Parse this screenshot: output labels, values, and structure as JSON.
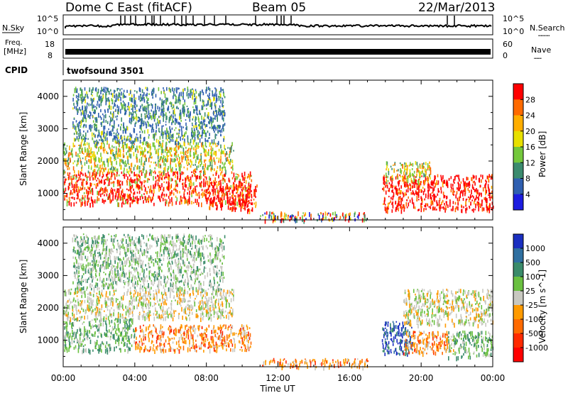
{
  "header": {
    "station": "Dome C East (fitACF)",
    "beam": "Beam 05",
    "date": "22/Mar/2013"
  },
  "noise_panel": {
    "left_label": "N.Sky",
    "right_label": "N.Search",
    "right_dots": "………",
    "left_ticks": [
      "10^5",
      "10^0"
    ],
    "right_ticks": [
      "10^5",
      "10^0"
    ]
  },
  "freq_panel": {
    "left_label_line1": "Freq.",
    "left_label_line2": "[MHz]",
    "right_label": "Nave",
    "right_dots": "……",
    "left_ticks": [
      "18",
      "8"
    ],
    "right_ticks": [
      "60",
      "0"
    ]
  },
  "cpid": {
    "label": "CPID",
    "program": "twofsound 3501"
  },
  "x_axis": {
    "title": "Time UT",
    "ticks": [
      "00:00",
      "04:00",
      "08:00",
      "12:00",
      "16:00",
      "20:00",
      "00:00"
    ]
  },
  "chart_data": [
    {
      "type": "heatmap",
      "ylabel": "Slant Range [km]",
      "xlabel": "Time UT",
      "xlim_hours": [
        0,
        24
      ],
      "ylim": [
        180,
        4500
      ],
      "yticks": [
        "4000",
        "3000",
        "2000",
        "1000"
      ],
      "colorbar": {
        "title": "Power [dB]",
        "ticks": [
          "28",
          "24",
          "20",
          "16",
          "12",
          "8",
          "4"
        ],
        "colors": [
          "#ff0000",
          "#ff6a00",
          "#ffae00",
          "#e8e000",
          "#74c83c",
          "#3b8b6e",
          "#2f5fb0",
          "#1c1ce0"
        ]
      },
      "scatter_bands": [
        {
          "t0": 0.0,
          "t1": 10.5,
          "r0": 700,
          "r1": 1700,
          "level": "high"
        },
        {
          "t0": 8.0,
          "t1": 10.8,
          "r0": 500,
          "r1": 1300,
          "level": "very_high"
        },
        {
          "t0": 0.0,
          "t1": 9.5,
          "r0": 1700,
          "r1": 2600,
          "level": "mid"
        },
        {
          "t0": 0.5,
          "t1": 9.0,
          "r0": 2600,
          "r1": 4300,
          "level": "low"
        },
        {
          "t0": 11.0,
          "t1": 17.0,
          "r0": 200,
          "r1": 450,
          "level": "mixed"
        },
        {
          "t0": 17.8,
          "t1": 24.0,
          "r0": 500,
          "r1": 1600,
          "level": "very_high"
        },
        {
          "t0": 18.0,
          "t1": 20.5,
          "r0": 1400,
          "r1": 2000,
          "level": "mid"
        }
      ]
    },
    {
      "type": "heatmap",
      "ylabel": "Slant Range [km]",
      "xlabel": "Time UT",
      "xlim_hours": [
        0,
        24
      ],
      "ylim": [
        180,
        4500
      ],
      "yticks": [
        "4000",
        "3000",
        "2000",
        "1000"
      ],
      "colorbar": {
        "title": "Velocity [m s^-1]",
        "ticks": [
          "1000",
          "500",
          "100",
          "25",
          "-25",
          "-100",
          "-500",
          "-1000"
        ],
        "colors": [
          "#1a2fc0",
          "#2f6fa0",
          "#3a8b6a",
          "#6ac040",
          "#c8c8c0",
          "#ff9a00",
          "#ff6a00",
          "#ff2a00",
          "#ff0000"
        ]
      },
      "scatter_bands": [
        {
          "t0": 0.0,
          "t1": 4.0,
          "r0": 700,
          "r1": 1700,
          "level": "green"
        },
        {
          "t0": 4.0,
          "t1": 10.5,
          "r0": 700,
          "r1": 1500,
          "level": "orange"
        },
        {
          "t0": 0.0,
          "t1": 9.5,
          "r0": 1700,
          "r1": 2600,
          "level": "gray"
        },
        {
          "t0": 0.5,
          "t1": 9.0,
          "r0": 2600,
          "r1": 4300,
          "level": "gray_green"
        },
        {
          "t0": 11.0,
          "t1": 17.0,
          "r0": 200,
          "r1": 450,
          "level": "orange"
        },
        {
          "t0": 17.8,
          "t1": 19.5,
          "r0": 600,
          "r1": 1600,
          "level": "blue"
        },
        {
          "t0": 19.0,
          "t1": 21.8,
          "r0": 600,
          "r1": 1300,
          "level": "orange"
        },
        {
          "t0": 21.5,
          "t1": 24.0,
          "r0": 500,
          "r1": 1300,
          "level": "green"
        },
        {
          "t0": 19.0,
          "t1": 24.0,
          "r0": 1500,
          "r1": 2600,
          "level": "gray"
        }
      ]
    }
  ]
}
